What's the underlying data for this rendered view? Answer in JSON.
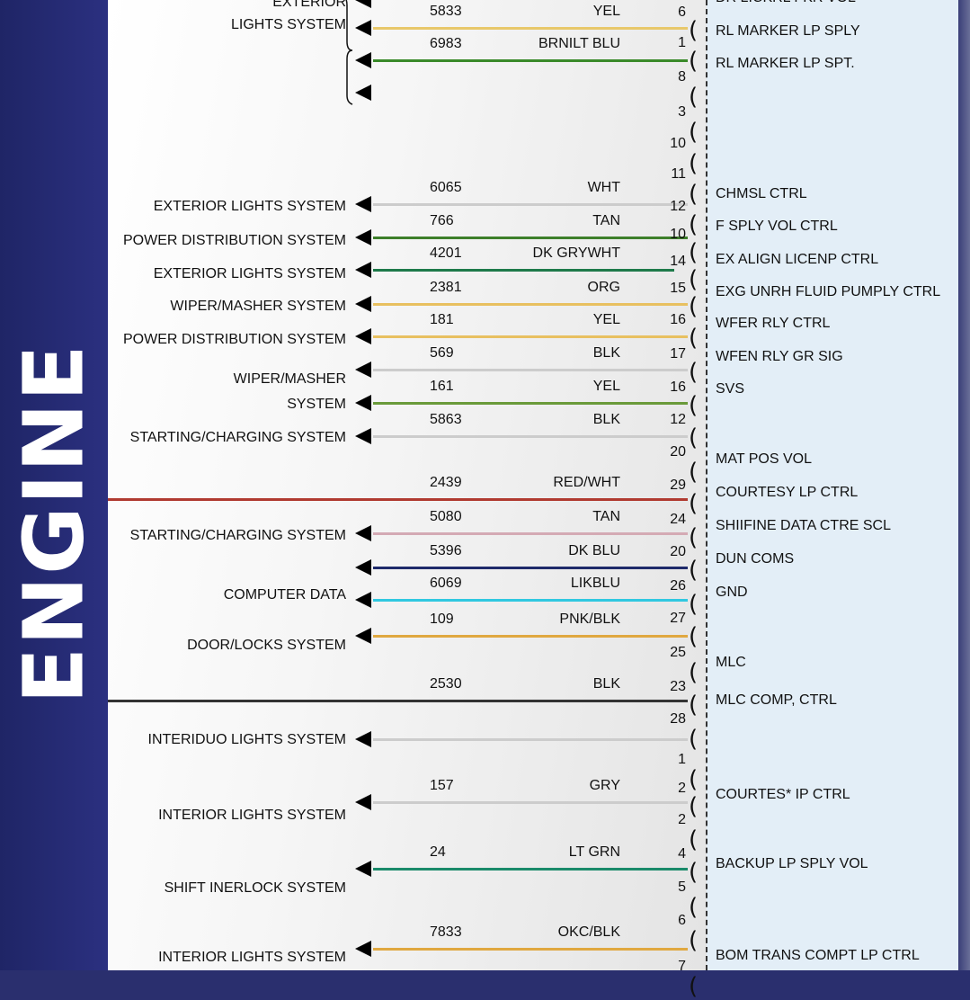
{
  "side_title": "ENGINE",
  "colors": {
    "band": "#2b3080",
    "panel": "#e3eef7"
  },
  "left_labels": [
    "EXTERIOR",
    "LIGHTS SYSTEM",
    "EXTERIOR LIGHTS SYSTEM",
    "POWER DISTRIBUTION SYSTEM",
    "EXTERIOR LIGHTS SYSTEM",
    "WIPER/MASHER SYSTEM",
    "POWER DISTRIBUTION SYSTEM",
    "WIPER/MASHER",
    "SYSTEM",
    "STARTING/CHARGING SYSTEM",
    "STARTING/CHARGING SYSTEM",
    "COMPUTER DATA",
    "DOOR/LOCKS SYSTEM",
    "INTERIDUO LIGHTS SYSTEM",
    "INTERIOR LIGHTS SYSTEM",
    "SHIFT INERLOCK SYSTEM",
    "INTERIOR LIGHTS SYSTEM"
  ],
  "wires": [
    {
      "circuit": "5833",
      "color_label": "YEL",
      "pin": "6",
      "hex": "#e8c86a"
    },
    {
      "circuit": "6983",
      "color_label": "BRNILT BLU",
      "pin": "1",
      "hex": "#3a8a2a"
    },
    {
      "circuit": "6065",
      "color_label": "WHT",
      "pin": "12",
      "hex": "#cccccc"
    },
    {
      "circuit": "766",
      "color_label": "TAN",
      "pin": "10",
      "hex": "#3d7f2a"
    },
    {
      "circuit": "4201",
      "color_label": "DK GRYWHT",
      "pin": "14",
      "hex": "#1e7a4a"
    },
    {
      "circuit": "2381",
      "color_label": "ORG",
      "pin": "15",
      "hex": "#e8c060"
    },
    {
      "circuit": "181",
      "color_label": "YEL",
      "pin": "16",
      "hex": "#e8c060"
    },
    {
      "circuit": "569",
      "color_label": "BLK",
      "pin": "17",
      "hex": "#cccccc"
    },
    {
      "circuit": "161",
      "color_label": "YEL",
      "pin": "16",
      "hex": "#6a9a3a"
    },
    {
      "circuit": "5863",
      "color_label": "BLK",
      "pin": "12",
      "hex": "#cccccc"
    },
    {
      "circuit": "2439",
      "color_label": "RED/WHT",
      "pin": "29",
      "hex": "#b03a30"
    },
    {
      "circuit": "5080",
      "color_label": "TAN",
      "pin": "24",
      "hex": "#d4aab4"
    },
    {
      "circuit": "5396",
      "color_label": "DK BLU",
      "pin": "20",
      "hex": "#1e2a6a"
    },
    {
      "circuit": "6069",
      "color_label": "LIKBLU",
      "pin": "26",
      "hex": "#30c8e0"
    },
    {
      "circuit": "109",
      "color_label": "PNK/BLK",
      "pin": "27",
      "hex": "#e0a840"
    },
    {
      "circuit": "2530",
      "color_label": "BLK",
      "pin": "23",
      "hex": "#333333"
    },
    {
      "circuit": "",
      "color_label": "",
      "pin": "",
      "hex": "#cccccc"
    },
    {
      "circuit": "157",
      "color_label": "GRY",
      "pin": "2",
      "hex": "#cccccc"
    },
    {
      "circuit": "24",
      "color_label": "LT GRN",
      "pin": "4",
      "hex": "#1a8a6a"
    },
    {
      "circuit": "7833",
      "color_label": "OKC/BLK",
      "pin": "",
      "hex": "#e0a840"
    }
  ],
  "extra_pins": [
    "8",
    "3",
    "10",
    "11",
    "20",
    "25",
    "28",
    "1",
    "2",
    "5",
    "6",
    "7"
  ],
  "right_labels": [
    "DR LICKRL FKR VOL",
    "RL MARKER LP SPLY",
    "RL MARKER LP SPT.",
    "CHMSL CTRL",
    "F SPLY VOL CTRL",
    "EX ALIGN LICENP CTRL",
    "EXG UNRH FLUID PUMPLY CTRL",
    "WFER RLY CTRL",
    "WFEN RLY GR SIG",
    "SVS",
    "MAT POS VOL",
    "COURTESY LP CTRL",
    "SHIIFINE DATA CTRE SCL",
    "DUN COMS",
    "GND",
    "MLC",
    "MLC COMP, CTRL",
    "COURTES* IP CTRL",
    "BACKUP LP SPLY VOL",
    "BOM TRANS COMPT LP CTRL"
  ]
}
